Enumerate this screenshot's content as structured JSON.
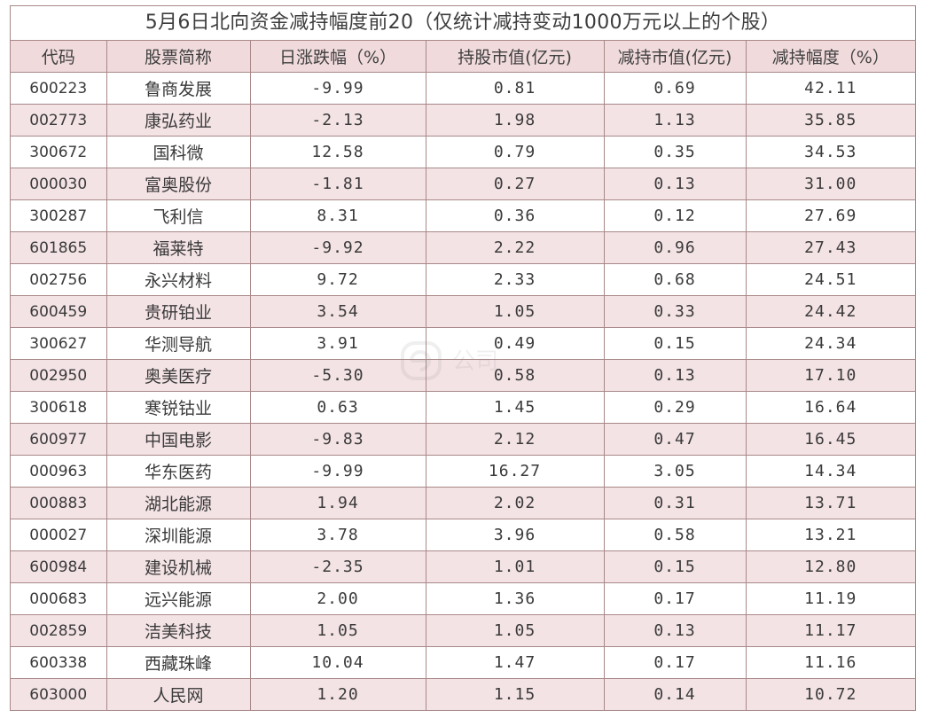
{
  "title": "5月6日北向资金减持幅度前20（仅统计减持变动1000万元以上的个股）",
  "columns": [
    "代码",
    "股票简称",
    "日涨跌幅（%）",
    "持股市值(亿元)",
    "减持市值(亿元)",
    "减持幅度（%）"
  ],
  "rows": [
    {
      "code": "600223",
      "name": "鲁商发展",
      "change": "-9.99",
      "holding": "0.81",
      "reduced": "0.69",
      "ratio": "42.11"
    },
    {
      "code": "002773",
      "name": "康弘药业",
      "change": "-2.13",
      "holding": "1.98",
      "reduced": "1.13",
      "ratio": "35.85"
    },
    {
      "code": "300672",
      "name": "国科微",
      "change": "12.58",
      "holding": "0.79",
      "reduced": "0.35",
      "ratio": "34.53"
    },
    {
      "code": "000030",
      "name": "富奥股份",
      "change": "-1.81",
      "holding": "0.27",
      "reduced": "0.13",
      "ratio": "31.00"
    },
    {
      "code": "300287",
      "name": "飞利信",
      "change": "8.31",
      "holding": "0.36",
      "reduced": "0.12",
      "ratio": "27.69"
    },
    {
      "code": "601865",
      "name": "福莱特",
      "change": "-9.92",
      "holding": "2.22",
      "reduced": "0.96",
      "ratio": "27.43"
    },
    {
      "code": "002756",
      "name": "永兴材料",
      "change": "9.72",
      "holding": "2.33",
      "reduced": "0.68",
      "ratio": "24.51"
    },
    {
      "code": "600459",
      "name": "贵研铂业",
      "change": "3.54",
      "holding": "1.05",
      "reduced": "0.33",
      "ratio": "24.42"
    },
    {
      "code": "300627",
      "name": "华测导航",
      "change": "3.91",
      "holding": "0.49",
      "reduced": "0.15",
      "ratio": "24.34"
    },
    {
      "code": "002950",
      "name": "奥美医疗",
      "change": "-5.30",
      "holding": "0.58",
      "reduced": "0.13",
      "ratio": "17.10"
    },
    {
      "code": "300618",
      "name": "寒锐钴业",
      "change": "0.63",
      "holding": "1.45",
      "reduced": "0.29",
      "ratio": "16.64"
    },
    {
      "code": "600977",
      "name": "中国电影",
      "change": "-9.83",
      "holding": "2.12",
      "reduced": "0.47",
      "ratio": "16.45"
    },
    {
      "code": "000963",
      "name": "华东医药",
      "change": "-9.99",
      "holding": "16.27",
      "reduced": "3.05",
      "ratio": "14.34"
    },
    {
      "code": "000883",
      "name": "湖北能源",
      "change": "1.94",
      "holding": "2.02",
      "reduced": "0.31",
      "ratio": "13.71"
    },
    {
      "code": "000027",
      "name": "深圳能源",
      "change": "3.78",
      "holding": "3.96",
      "reduced": "0.58",
      "ratio": "13.21"
    },
    {
      "code": "600984",
      "name": "建设机械",
      "change": "-2.35",
      "holding": "1.01",
      "reduced": "0.15",
      "ratio": "12.80"
    },
    {
      "code": "000683",
      "name": "远兴能源",
      "change": "2.00",
      "holding": "1.36",
      "reduced": "0.17",
      "ratio": "11.19"
    },
    {
      "code": "002859",
      "name": "洁美科技",
      "change": "1.05",
      "holding": "1.05",
      "reduced": "0.13",
      "ratio": "11.17"
    },
    {
      "code": "600338",
      "name": "西藏珠峰",
      "change": "10.04",
      "holding": "1.47",
      "reduced": "0.17",
      "ratio": "11.16"
    },
    {
      "code": "603000",
      "name": "人民网",
      "change": "1.20",
      "holding": "1.15",
      "reduced": "0.14",
      "ratio": "10.72"
    }
  ],
  "colors": {
    "border": "#a88888",
    "header_bg": "#f0dadc",
    "stripe_bg": "#f4e3e5",
    "text": "#3a3a3a"
  },
  "watermark": {
    "icon": "watermark-logo-icon",
    "text": "公司"
  }
}
